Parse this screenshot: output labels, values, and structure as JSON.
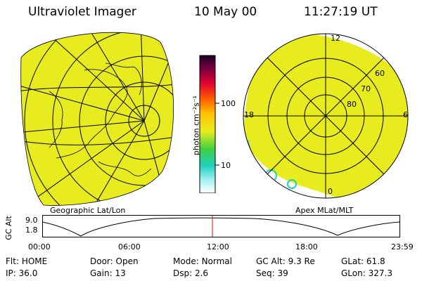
{
  "header": {
    "title": "Ultraviolet Imager",
    "date": "10 May 00",
    "time": "11:27:19 UT"
  },
  "colorbar": {
    "unit_label": "photon cm⁻²s⁻¹",
    "ticks": [
      "100",
      "10"
    ]
  },
  "left_panel": {
    "label": "Geographic Lat/Lon"
  },
  "right_panel": {
    "label": "Apex MLat/MLT",
    "mlt_labels": {
      "top": "12",
      "left": "18",
      "right": "6",
      "bottom": "0"
    },
    "lat_labels": [
      "60",
      "70",
      "80"
    ]
  },
  "altitude_plot": {
    "ylabel": "GC Alt",
    "yticks": [
      "9.0",
      "1.8"
    ],
    "xticks": [
      "00:00",
      "06:00",
      "12:00",
      "18:00",
      "23:59"
    ]
  },
  "footer": {
    "row1": [
      {
        "label": "Flt:",
        "value": "HOME"
      },
      {
        "label": "Door:",
        "value": "Open"
      },
      {
        "label": "Mode:",
        "value": "Normal"
      },
      {
        "label": "GC Alt:",
        "value": "9.3 Re"
      },
      {
        "label": "GLat:",
        "value": "61.8"
      }
    ],
    "row2": [
      {
        "label": "IP:",
        "value": "36.0"
      },
      {
        "label": "Gain:",
        "value": "13"
      },
      {
        "label": "Dsp:",
        "value": "2.6"
      },
      {
        "label": "Seq:",
        "value": "39"
      },
      {
        "label": "GLon:",
        "value": "327.3"
      }
    ]
  },
  "colors": {
    "image_fill": "#e8ec1e",
    "grid": "#000000",
    "marker": "#ff0000"
  }
}
